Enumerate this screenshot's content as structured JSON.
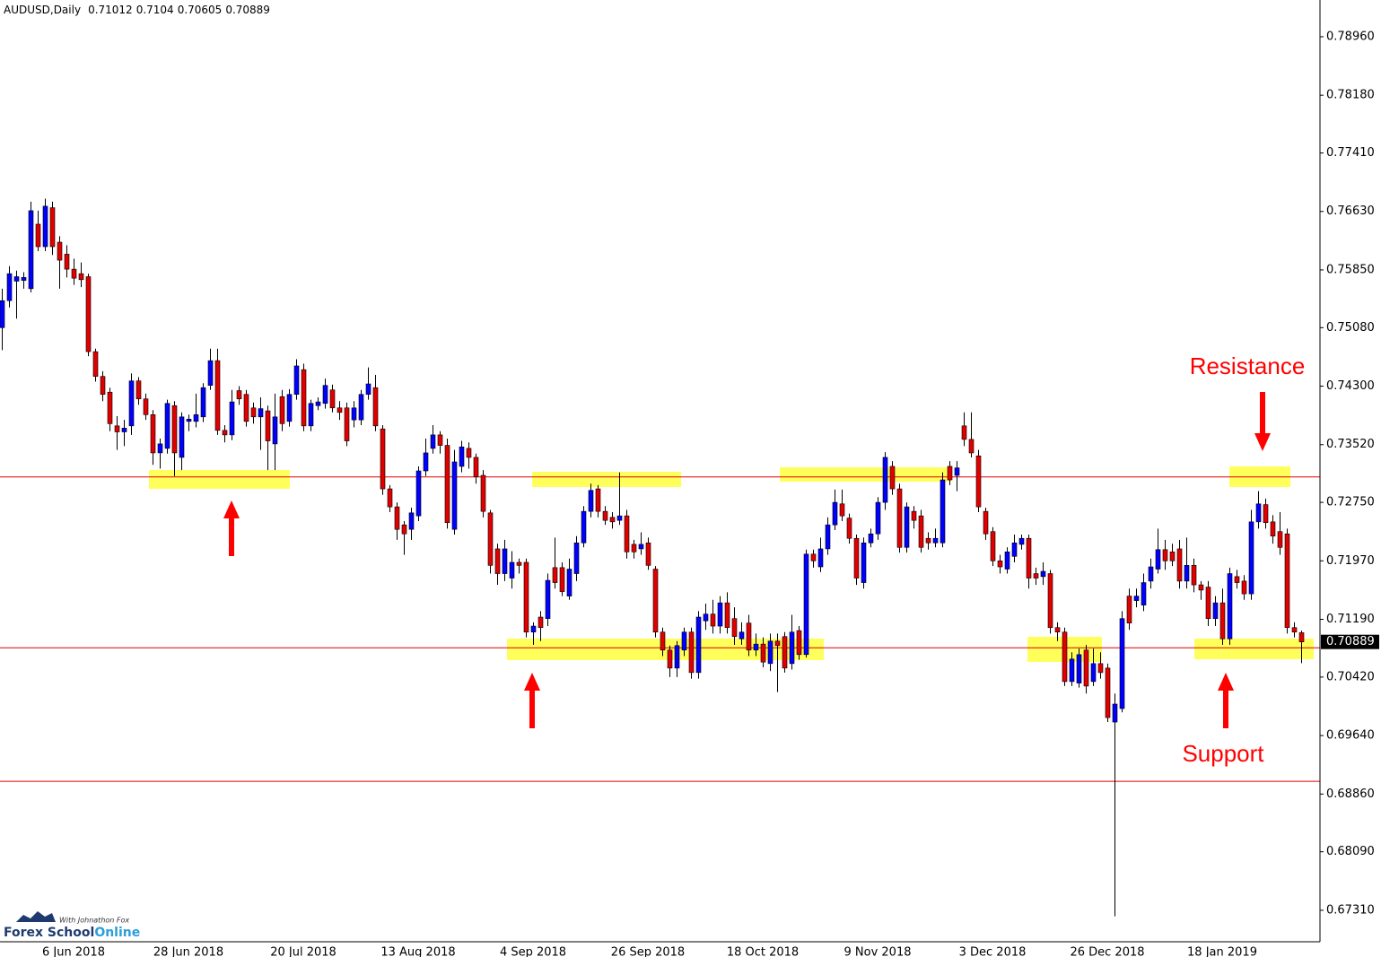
{
  "chart_data": {
    "type": "candlestick",
    "symbol": "AUDUSD,Daily",
    "up_color": "#0000ff",
    "down_color": "#e00000",
    "wick_color": "#000000",
    "level_color": "#e00000",
    "levels": [
      0.7309,
      0.7081,
      0.6903
    ],
    "annotations": {
      "resistance": "Resistance",
      "support": "Support"
    },
    "ylim": [
      0.6689,
      0.7945
    ],
    "yticks": [
      {
        "value": 0.7896,
        "label": "0.78960"
      },
      {
        "value": 0.7818,
        "label": "0.78180"
      },
      {
        "value": 0.7741,
        "label": "0.77410"
      },
      {
        "value": 0.7663,
        "label": "0.76630"
      },
      {
        "value": 0.7585,
        "label": "0.75850"
      },
      {
        "value": 0.7508,
        "label": "0.75080"
      },
      {
        "value": 0.743,
        "label": "0.74300"
      },
      {
        "value": 0.7352,
        "label": "0.73520"
      },
      {
        "value": 0.7275,
        "label": "0.72750"
      },
      {
        "value": 0.7197,
        "label": "0.71970"
      },
      {
        "value": 0.7119,
        "label": "0.71190"
      },
      {
        "value": 0.7042,
        "label": "0.70420"
      },
      {
        "value": 0.6964,
        "label": "0.69640"
      },
      {
        "value": 0.6886,
        "label": "0.68860"
      },
      {
        "value": 0.6809,
        "label": "0.68090"
      },
      {
        "value": 0.6731,
        "label": "0.67310"
      }
    ],
    "categories": [
      null,
      null,
      null,
      null,
      null,
      null,
      null,
      null,
      null,
      null,
      "6 Jun 2018",
      null,
      null,
      null,
      null,
      null,
      null,
      null,
      null,
      null,
      null,
      null,
      null,
      null,
      null,
      null,
      "28 Jun 2018",
      null,
      null,
      null,
      null,
      null,
      null,
      null,
      null,
      null,
      null,
      null,
      null,
      null,
      null,
      null,
      "20 Jul 2018",
      null,
      null,
      null,
      null,
      null,
      null,
      null,
      null,
      null,
      null,
      null,
      null,
      null,
      null,
      null,
      "13 Aug 2018",
      null,
      null,
      null,
      null,
      null,
      null,
      null,
      null,
      null,
      null,
      null,
      null,
      null,
      null,
      null,
      "4 Sep 2018",
      null,
      null,
      null,
      null,
      null,
      null,
      null,
      null,
      null,
      null,
      null,
      null,
      null,
      null,
      null,
      "26 Sep 2018",
      null,
      null,
      null,
      null,
      null,
      null,
      null,
      null,
      null,
      null,
      null,
      null,
      null,
      null,
      null,
      "18 Oct 2018",
      null,
      null,
      null,
      null,
      null,
      null,
      null,
      null,
      null,
      null,
      null,
      null,
      null,
      null,
      null,
      "9 Nov 2018",
      null,
      null,
      null,
      null,
      null,
      null,
      null,
      null,
      null,
      null,
      null,
      null,
      null,
      null,
      null,
      "3 Dec 2018",
      null,
      null,
      null,
      null,
      null,
      null,
      null,
      null,
      null,
      null,
      null,
      null,
      null,
      null,
      null,
      "26 Dec 2018",
      null,
      null,
      null,
      null,
      null,
      null,
      null,
      null,
      null,
      null,
      null,
      null,
      null,
      null,
      null,
      "18 Jan 2019",
      null,
      null,
      null,
      null,
      null,
      null,
      null,
      null,
      null,
      null,
      null
    ],
    "open": [
      0.7508,
      0.7544,
      0.757,
      0.7571,
      0.756,
      0.7646,
      0.7616,
      0.7668,
      0.7622,
      0.7606,
      0.7586,
      0.758,
      0.7576,
      0.7476,
      0.7443,
      0.7422,
      0.7377,
      0.7369,
      0.7377,
      0.7437,
      0.7413,
      0.7392,
      0.7341,
      0.7347,
      0.7404,
      0.7335,
      0.7383,
      0.7383,
      0.7389,
      0.7431,
      0.7464,
      0.7371,
      0.7365,
      0.7424,
      0.7419,
      0.7401,
      0.7389,
      0.7397,
      0.7353,
      0.7416,
      0.7383,
      0.7419,
      0.7452,
      0.7377,
      0.7404,
      0.7407,
      0.7425,
      0.7401,
      0.7401,
      0.7385,
      0.7385,
      0.7419,
      0.7428,
      0.7373,
      0.7293,
      0.7269,
      0.7245,
      0.7239,
      0.7257,
      0.7317,
      0.7347,
      0.7365,
      0.7351,
      0.7239,
      0.7323,
      0.7347,
      0.7335,
      0.7311,
      0.7261,
      0.7213,
      0.718,
      0.7174,
      0.7195,
      0.7195,
      0.7102,
      0.7122,
      0.712,
      0.7188,
      0.7188,
      0.715,
      0.718,
      0.7221,
      0.7263,
      0.7293,
      0.7263,
      0.7255,
      0.7251,
      0.7257,
      0.7219,
      0.7213,
      0.7221,
      0.7186,
      0.7102,
      0.7078,
      0.7054,
      0.7078,
      0.7102,
      0.7048,
      0.7117,
      0.7126,
      0.711,
      0.7141,
      0.712,
      0.7093,
      0.7114,
      0.7078,
      0.7086,
      0.706,
      0.709,
      0.7096,
      0.706,
      0.7104,
      0.7072,
      0.7206,
      0.7189,
      0.7213,
      0.7245,
      0.7273,
      0.7254,
      0.7227,
      0.7168,
      0.7221,
      0.7233,
      0.7275,
      0.7323,
      0.7293,
      0.7215,
      0.7263,
      0.7257,
      0.7227,
      0.7221,
      0.7221,
      0.7323,
      0.7311,
      0.7377,
      0.7359,
      0.7337,
      0.7263,
      0.7236,
      0.7197,
      0.7186,
      0.7203,
      0.7219,
      0.7227,
      0.718,
      0.7176,
      0.718,
      0.7108,
      0.7102,
      0.7036,
      0.7034,
      0.7078,
      0.7036,
      0.706,
      0.7054,
      0.6982,
      0.7,
      0.715,
      0.7144,
      0.7138,
      0.717,
      0.7186,
      0.7212,
      0.7209,
      0.7213,
      0.717,
      0.7191,
      0.7165,
      0.7162,
      0.712,
      0.7141,
      0.7093,
      0.7176,
      0.717,
      0.7153,
      0.7249,
      0.7272,
      0.7249,
      0.7236,
      0.7233,
      0.7108,
      0.71012
    ],
    "high": [
      0.756,
      0.759,
      0.7584,
      0.7582,
      0.7676,
      0.7664,
      0.768,
      0.7676,
      0.763,
      0.7618,
      0.76,
      0.7595,
      0.758,
      0.748,
      0.745,
      0.7428,
      0.739,
      0.7385,
      0.7447,
      0.7442,
      0.742,
      0.7398,
      0.736,
      0.7412,
      0.741,
      0.7395,
      0.7392,
      0.742,
      0.7434,
      0.748,
      0.748,
      0.7378,
      0.7425,
      0.743,
      0.7425,
      0.7408,
      0.7415,
      0.7404,
      0.742,
      0.7425,
      0.7426,
      0.7466,
      0.746,
      0.7412,
      0.7415,
      0.744,
      0.7432,
      0.741,
      0.7408,
      0.741,
      0.7425,
      0.7455,
      0.7445,
      0.7378,
      0.7298,
      0.7275,
      0.725,
      0.7268,
      0.7323,
      0.736,
      0.7378,
      0.737,
      0.736,
      0.7345,
      0.7357,
      0.7355,
      0.734,
      0.7318,
      0.7265,
      0.722,
      0.7225,
      0.721,
      0.72,
      0.72,
      0.7115,
      0.713,
      0.718,
      0.7228,
      0.7195,
      0.72,
      0.723,
      0.727,
      0.73,
      0.7298,
      0.727,
      0.7262,
      0.7315,
      0.7265,
      0.7225,
      0.7235,
      0.7228,
      0.719,
      0.7108,
      0.7084,
      0.709,
      0.7108,
      0.7108,
      0.713,
      0.714,
      0.7145,
      0.715,
      0.7155,
      0.7135,
      0.7115,
      0.7125,
      0.71,
      0.7095,
      0.71,
      0.71,
      0.7102,
      0.7125,
      0.711,
      0.7212,
      0.7212,
      0.7228,
      0.7255,
      0.7292,
      0.7292,
      0.726,
      0.7232,
      0.7228,
      0.724,
      0.7282,
      0.7342,
      0.733,
      0.73,
      0.7275,
      0.727,
      0.7265,
      0.7235,
      0.724,
      0.7315,
      0.733,
      0.733,
      0.7395,
      0.7395,
      0.7345,
      0.7268,
      0.7242,
      0.7205,
      0.7215,
      0.7232,
      0.7232,
      0.7232,
      0.7188,
      0.7195,
      0.7185,
      0.7115,
      0.7108,
      0.7075,
      0.708,
      0.7085,
      0.708,
      0.7075,
      0.706,
      0.702,
      0.713,
      0.716,
      0.716,
      0.718,
      0.72,
      0.724,
      0.7225,
      0.722,
      0.7225,
      0.7228,
      0.72,
      0.717,
      0.717,
      0.715,
      0.716,
      0.7188,
      0.7185,
      0.7178,
      0.7265,
      0.729,
      0.728,
      0.7258,
      0.7262,
      0.724,
      0.7115,
      0.7104
    ],
    "low": [
      0.7478,
      0.7535,
      0.752,
      0.756,
      0.7555,
      0.761,
      0.761,
      0.7605,
      0.756,
      0.7575,
      0.7565,
      0.7562,
      0.747,
      0.7436,
      0.741,
      0.737,
      0.7345,
      0.735,
      0.7365,
      0.7405,
      0.7385,
      0.7325,
      0.732,
      0.734,
      0.731,
      0.7318,
      0.737,
      0.7375,
      0.7382,
      0.7425,
      0.7365,
      0.7355,
      0.7358,
      0.7405,
      0.7376,
      0.738,
      0.7345,
      0.7318,
      0.7318,
      0.737,
      0.7376,
      0.7412,
      0.737,
      0.737,
      0.7398,
      0.74,
      0.7395,
      0.7385,
      0.735,
      0.7375,
      0.7378,
      0.7412,
      0.737,
      0.7285,
      0.7262,
      0.7225,
      0.7205,
      0.7225,
      0.725,
      0.731,
      0.734,
      0.734,
      0.724,
      0.7232,
      0.7315,
      0.732,
      0.73,
      0.7255,
      0.718,
      0.7165,
      0.717,
      0.716,
      0.718,
      0.7095,
      0.7085,
      0.709,
      0.711,
      0.716,
      0.715,
      0.7145,
      0.717,
      0.7215,
      0.7255,
      0.7255,
      0.7245,
      0.724,
      0.7245,
      0.72,
      0.72,
      0.7205,
      0.7185,
      0.7095,
      0.707,
      0.7042,
      0.7042,
      0.707,
      0.704,
      0.704,
      0.7105,
      0.71,
      0.71,
      0.71,
      0.7085,
      0.7085,
      0.707,
      0.707,
      0.7055,
      0.705,
      0.7022,
      0.7048,
      0.7052,
      0.7065,
      0.7068,
      0.7188,
      0.7182,
      0.7205,
      0.7238,
      0.725,
      0.722,
      0.7165,
      0.716,
      0.7215,
      0.7225,
      0.7265,
      0.7285,
      0.7208,
      0.7208,
      0.724,
      0.7208,
      0.7212,
      0.7215,
      0.7215,
      0.7298,
      0.729,
      0.735,
      0.7335,
      0.7262,
      0.7225,
      0.719,
      0.718,
      0.718,
      0.7195,
      0.7212,
      0.716,
      0.7165,
      0.7165,
      0.71,
      0.709,
      0.703,
      0.703,
      0.7028,
      0.702,
      0.703,
      0.704,
      0.6982,
      0.6723,
      0.6995,
      0.7105,
      0.7135,
      0.713,
      0.716,
      0.718,
      0.7185,
      0.719,
      0.716,
      0.716,
      0.7155,
      0.7145,
      0.711,
      0.711,
      0.7085,
      0.7085,
      0.716,
      0.7145,
      0.7145,
      0.724,
      0.724,
      0.722,
      0.7205,
      0.71,
      0.7095,
      0.70605
    ],
    "close": [
      0.7544,
      0.758,
      0.7576,
      0.7575,
      0.7664,
      0.7616,
      0.767,
      0.7616,
      0.7598,
      0.7586,
      0.7574,
      0.7572,
      0.7476,
      0.7443,
      0.7419,
      0.738,
      0.7369,
      0.7374,
      0.7437,
      0.7413,
      0.7392,
      0.7341,
      0.7353,
      0.7407,
      0.7341,
      0.7389,
      0.7386,
      0.7392,
      0.7428,
      0.7464,
      0.7371,
      0.7365,
      0.7409,
      0.7413,
      0.7383,
      0.7389,
      0.74,
      0.7357,
      0.7389,
      0.738,
      0.7419,
      0.7457,
      0.7377,
      0.7407,
      0.7409,
      0.7431,
      0.7401,
      0.7395,
      0.7357,
      0.7401,
      0.7419,
      0.7433,
      0.7377,
      0.7293,
      0.7269,
      0.7239,
      0.7233,
      0.7261,
      0.7317,
      0.7341,
      0.7365,
      0.7351,
      0.7248,
      0.7329,
      0.7349,
      0.7335,
      0.7309,
      0.7263,
      0.7191,
      0.718,
      0.7213,
      0.7195,
      0.7191,
      0.7102,
      0.711,
      0.7108,
      0.7171,
      0.7168,
      0.7156,
      0.7186,
      0.7221,
      0.7263,
      0.7291,
      0.7263,
      0.7251,
      0.7249,
      0.7257,
      0.7209,
      0.7209,
      0.7219,
      0.7191,
      0.7102,
      0.7078,
      0.7054,
      0.7084,
      0.7102,
      0.7048,
      0.7122,
      0.7126,
      0.711,
      0.7141,
      0.7108,
      0.7096,
      0.7102,
      0.7078,
      0.7086,
      0.7062,
      0.709,
      0.7084,
      0.7054,
      0.7102,
      0.7072,
      0.7206,
      0.7197,
      0.7213,
      0.7245,
      0.7275,
      0.7257,
      0.7227,
      0.7174,
      0.7221,
      0.7233,
      0.7275,
      0.7335,
      0.7293,
      0.7215,
      0.7269,
      0.7251,
      0.7215,
      0.7221,
      0.7227,
      0.7305,
      0.7305,
      0.7321,
      0.7359,
      0.7341,
      0.7269,
      0.7233,
      0.7197,
      0.7189,
      0.7209,
      0.7221,
      0.7227,
      0.7174,
      0.7174,
      0.7183,
      0.7108,
      0.7102,
      0.7036,
      0.7066,
      0.7072,
      0.703,
      0.706,
      0.7048,
      0.6988,
      0.7006,
      0.712,
      0.7114,
      0.715,
      0.7168,
      0.7189,
      0.7212,
      0.7197,
      0.7197,
      0.717,
      0.7191,
      0.7165,
      0.7158,
      0.712,
      0.7141,
      0.7093,
      0.718,
      0.7168,
      0.7153,
      0.7249,
      0.7273,
      0.7248,
      0.723,
      0.7215,
      0.7108,
      0.7102,
      0.70889
    ]
  },
  "branding": {
    "tagline": "With Johnathon Fox",
    "name_a": "Forex School",
    "name_b": "Online"
  }
}
